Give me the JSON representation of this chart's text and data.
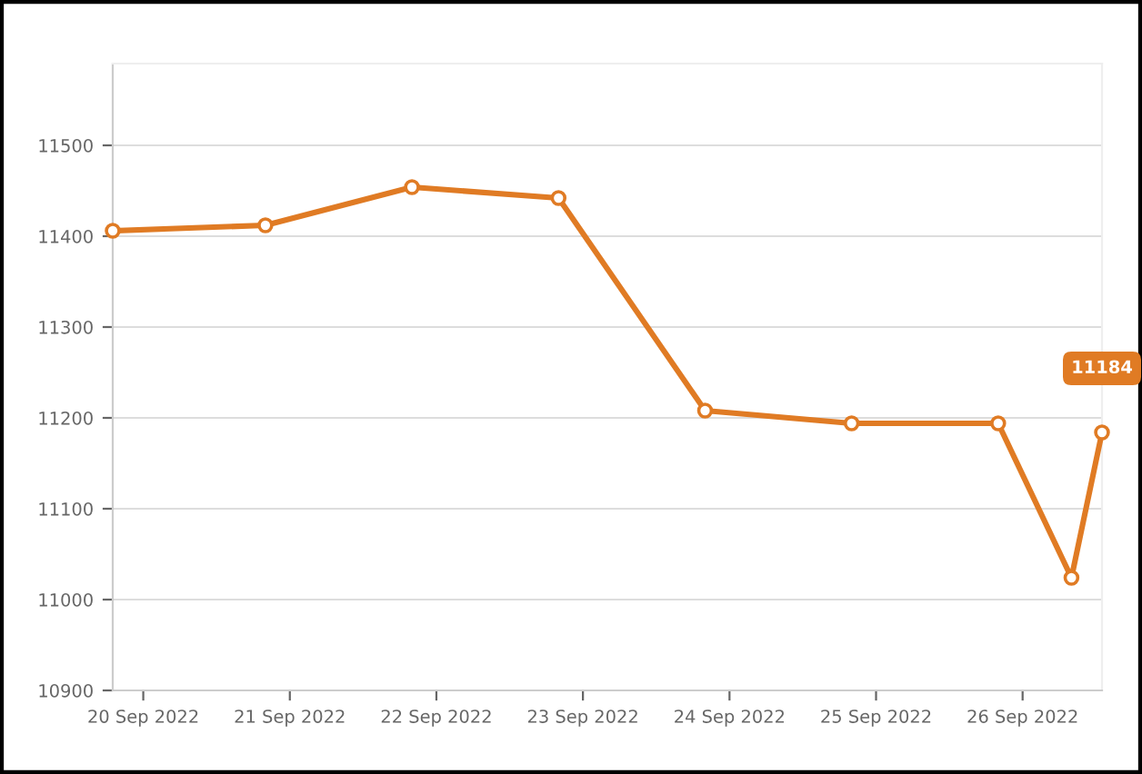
{
  "chart_data": {
    "type": "line",
    "x": [
      "2022-09-19T19:00",
      "2022-09-20T20:00",
      "2022-09-21T20:00",
      "2022-09-22T20:00",
      "2022-09-23T20:00",
      "2022-09-24T20:00",
      "2022-09-25T20:00",
      "2022-09-26T08:00",
      "2022-09-26T13:00"
    ],
    "series": [
      {
        "color": "#e07b24",
        "values": [
          11406,
          11412,
          11454,
          11442,
          11208,
          11194,
          11194,
          11024,
          11184
        ],
        "value_labels": [
          null,
          null,
          null,
          null,
          null,
          null,
          null,
          null,
          "11184"
        ]
      }
    ],
    "xlim": [
      "2022-09-19T19:00",
      "2022-09-26T13:00"
    ],
    "xticks": [
      {
        "value": "2022-09-20",
        "label": "20 Sep 2022"
      },
      {
        "value": "2022-09-21",
        "label": "21 Sep 2022"
      },
      {
        "value": "2022-09-22",
        "label": "22 Sep 2022"
      },
      {
        "value": "2022-09-23",
        "label": "23 Sep 2022"
      },
      {
        "value": "2022-09-24",
        "label": "24 Sep 2022"
      },
      {
        "value": "2022-09-25",
        "label": "25 Sep 2022"
      },
      {
        "value": "2022-09-26",
        "label": "26 Sep 2022"
      }
    ],
    "ylim": [
      10900,
      11590
    ],
    "yticks": [
      10900,
      11000,
      11100,
      11200,
      11300,
      11400,
      11500
    ],
    "grid": "y",
    "marker": "circle",
    "line_style": "solid"
  }
}
